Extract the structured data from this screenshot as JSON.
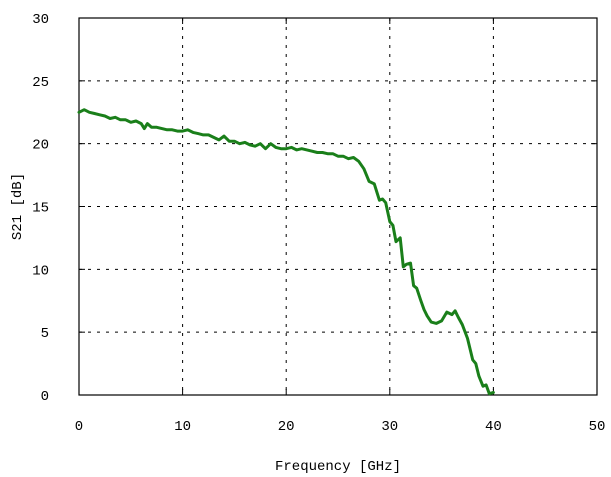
{
  "chart_data": {
    "type": "line",
    "xlabel": "Frequency [GHz]",
    "ylabel": "S21 [dB]",
    "xlim": [
      0,
      50
    ],
    "ylim": [
      0,
      30
    ],
    "xticks": [
      0,
      10,
      20,
      30,
      40,
      50
    ],
    "yticks": [
      0,
      5,
      10,
      15,
      20,
      25,
      30
    ],
    "grid": true,
    "series": [
      {
        "color": "#1a7f1a",
        "x": [
          0,
          0.5,
          1,
          1.5,
          2,
          2.5,
          3,
          3.5,
          4,
          4.5,
          5,
          5.5,
          6,
          6.3,
          6.6,
          7,
          7.5,
          8,
          8.5,
          9,
          9.5,
          10,
          10.5,
          11,
          11.5,
          12,
          12.5,
          13,
          13.5,
          14,
          14.5,
          15,
          15.5,
          16,
          16.5,
          17,
          17.5,
          18,
          18.5,
          19,
          19.5,
          20,
          20.5,
          21,
          21.5,
          22,
          22.5,
          23,
          23.5,
          24,
          24.5,
          25,
          25.5,
          26,
          26.5,
          27,
          27.5,
          28,
          28.5,
          29,
          29.3,
          29.6,
          30,
          30.3,
          30.6,
          31,
          31.3,
          31.6,
          32,
          32.3,
          32.6,
          33,
          33.3,
          33.6,
          34,
          34.5,
          35,
          35.5,
          36,
          36.3,
          36.6,
          37,
          37.5,
          38,
          38.3,
          38.6,
          39,
          39.3,
          39.6,
          40
        ],
        "y": [
          22.5,
          22.7,
          22.5,
          22.4,
          22.3,
          22.2,
          22.0,
          22.1,
          21.9,
          21.9,
          21.7,
          21.8,
          21.6,
          21.2,
          21.6,
          21.3,
          21.3,
          21.2,
          21.1,
          21.1,
          21.0,
          21.0,
          21.1,
          20.9,
          20.8,
          20.7,
          20.7,
          20.5,
          20.3,
          20.6,
          20.2,
          20.2,
          20.0,
          20.1,
          19.9,
          19.8,
          20.0,
          19.6,
          20.0,
          19.7,
          19.6,
          19.6,
          19.7,
          19.5,
          19.6,
          19.5,
          19.4,
          19.3,
          19.3,
          19.2,
          19.2,
          19.0,
          19.0,
          18.8,
          18.9,
          18.6,
          18.0,
          17.0,
          16.8,
          15.5,
          15.6,
          15.3,
          13.8,
          13.5,
          12.2,
          12.5,
          10.2,
          10.4,
          10.5,
          8.7,
          8.5,
          7.5,
          6.8,
          6.3,
          5.8,
          5.7,
          5.9,
          6.6,
          6.4,
          6.7,
          6.2,
          5.6,
          4.5,
          2.8,
          2.5,
          1.5,
          0.7,
          0.8,
          0.1,
          0.2
        ]
      }
    ]
  }
}
